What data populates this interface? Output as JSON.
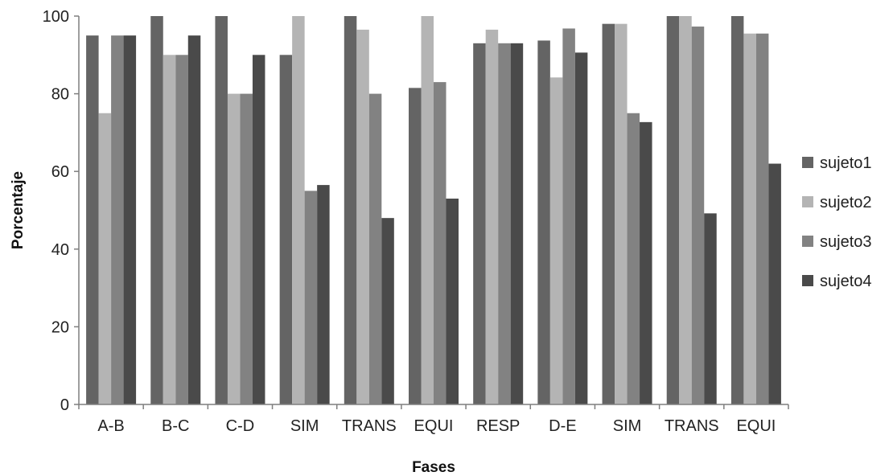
{
  "chart_data": {
    "type": "bar",
    "title": "",
    "xlabel": "Fases",
    "ylabel": "Porcentaje",
    "ylim": [
      0,
      100
    ],
    "yticks": [
      0,
      20,
      40,
      60,
      80,
      100
    ],
    "grid": false,
    "legend_position": "right",
    "categories": [
      "A-B",
      "B-C",
      "C-D",
      "SIM",
      "TRANS",
      "EQUI",
      "RESP",
      "D-E",
      "SIM",
      "TRANS",
      "EQUI"
    ],
    "series": [
      {
        "name": "sujeto1",
        "color": "#646464",
        "values": [
          95,
          100,
          100,
          90,
          100,
          81.5,
          93,
          93.7,
          98,
          100,
          100
        ]
      },
      {
        "name": "sujeto2",
        "color": "#b4b4b4",
        "values": [
          75,
          90,
          80,
          100,
          96.5,
          100,
          96.5,
          84.2,
          98,
          100,
          95.5
        ]
      },
      {
        "name": "sujeto3",
        "color": "#828282",
        "values": [
          95,
          90,
          80,
          55,
          80,
          83,
          93,
          96.8,
          75,
          97.3,
          95.5
        ]
      },
      {
        "name": "sujeto4",
        "color": "#4a4a4a",
        "values": [
          95,
          95,
          90,
          56.5,
          48,
          53,
          93,
          90.6,
          72.7,
          49.2,
          62
        ]
      }
    ]
  }
}
